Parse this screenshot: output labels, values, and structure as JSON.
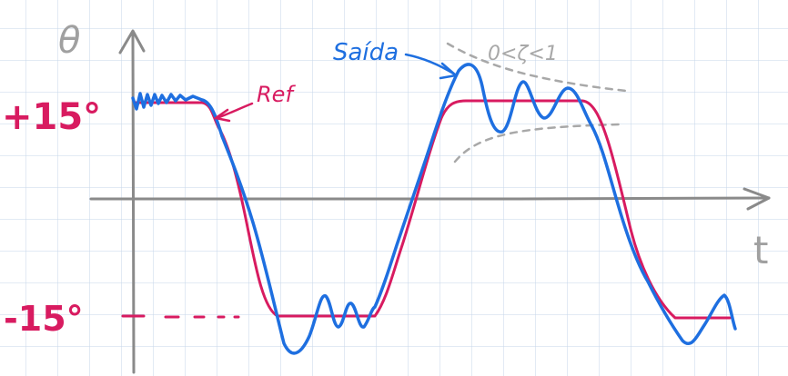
{
  "labels": {
    "y_axis": "θ",
    "x_axis": "t",
    "upper_level": "+15°",
    "lower_level": "-15°",
    "reference": "Ref",
    "output": "Saída",
    "damping": "0<ζ<1"
  },
  "colors": {
    "reference": "#d81b60",
    "output": "#1e6fe0",
    "axis": "#8a8a8a",
    "envelope": "#a8a8a8",
    "grid": "#c6d6ea"
  }
}
